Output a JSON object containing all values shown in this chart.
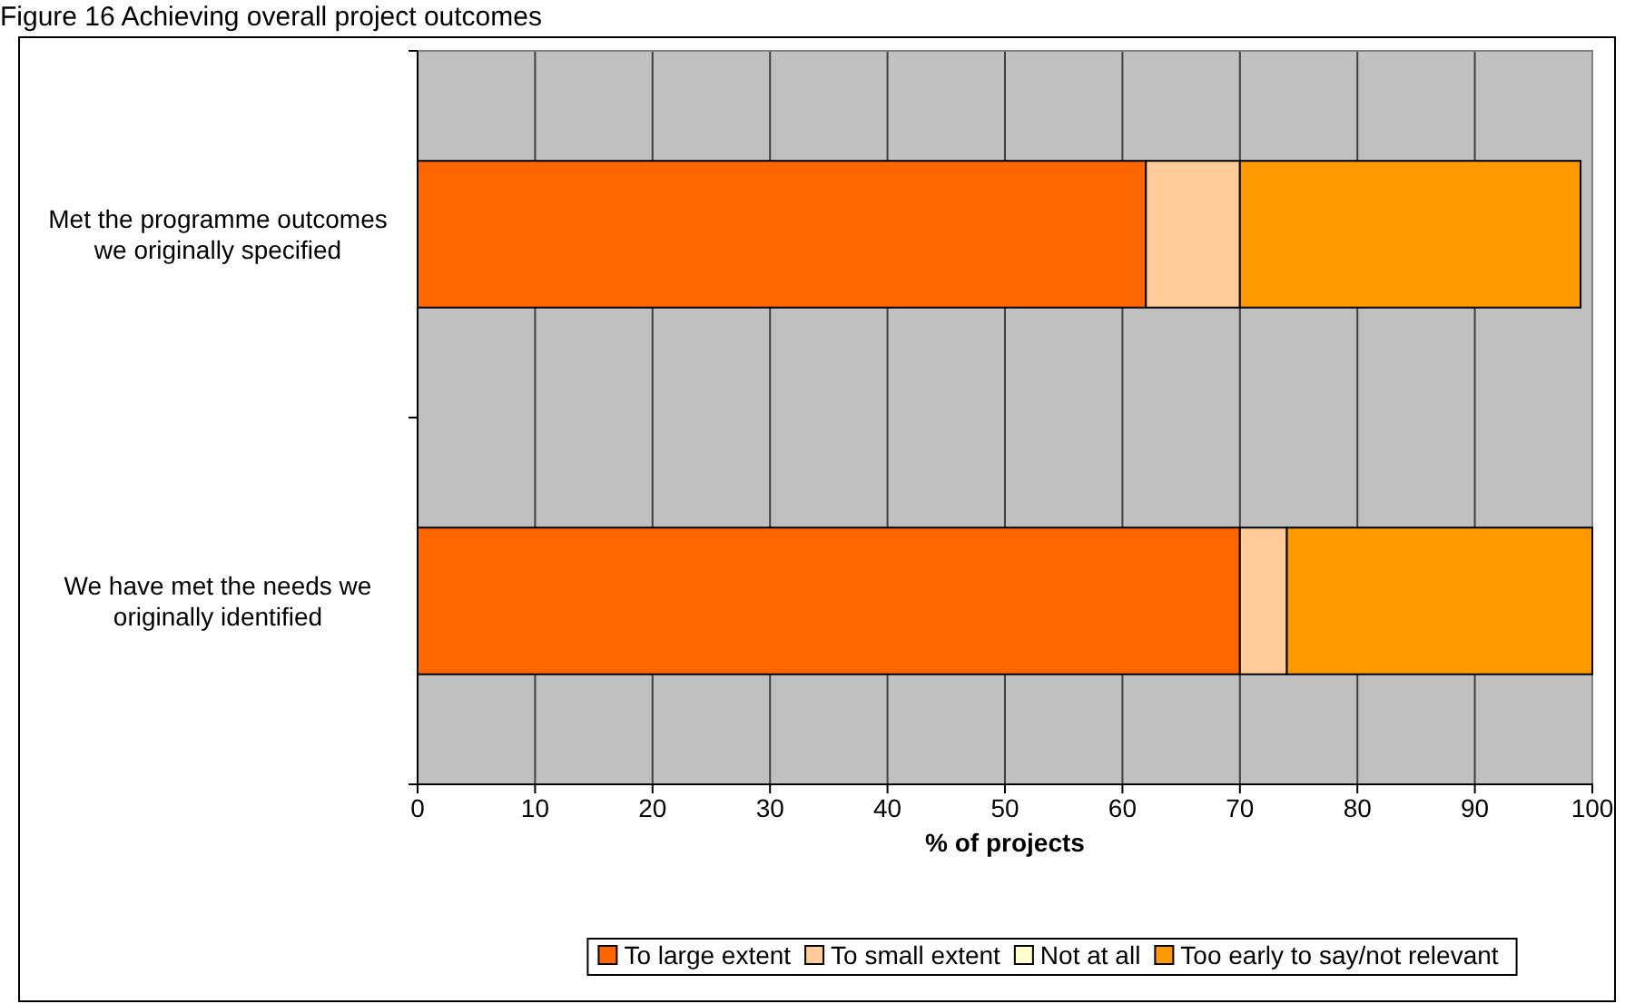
{
  "chart_data": {
    "type": "bar",
    "orientation": "horizontal",
    "stacked": true,
    "title": "Figure 16 Achieving overall project outcomes",
    "xlabel": "% of projects",
    "categories": [
      "Met the programme outcomes we originally specified",
      "We have met the needs we originally identified"
    ],
    "series": [
      {
        "name": "To large extent",
        "color": "#ff6600",
        "values": [
          62,
          70
        ]
      },
      {
        "name": "To small extent",
        "color": "#ffcc99",
        "values": [
          8,
          4
        ]
      },
      {
        "name": "Not at all",
        "color": "#ffffcc",
        "values": [
          0,
          0
        ]
      },
      {
        "name": "Too early to say/not relevant",
        "color": "#ff9900",
        "values": [
          29,
          26
        ]
      }
    ],
    "xlim": [
      0,
      100
    ],
    "xticks": [
      0,
      10,
      20,
      30,
      40,
      50,
      60,
      70,
      80,
      90,
      100
    ],
    "grid": "x",
    "legend": "bottom"
  }
}
